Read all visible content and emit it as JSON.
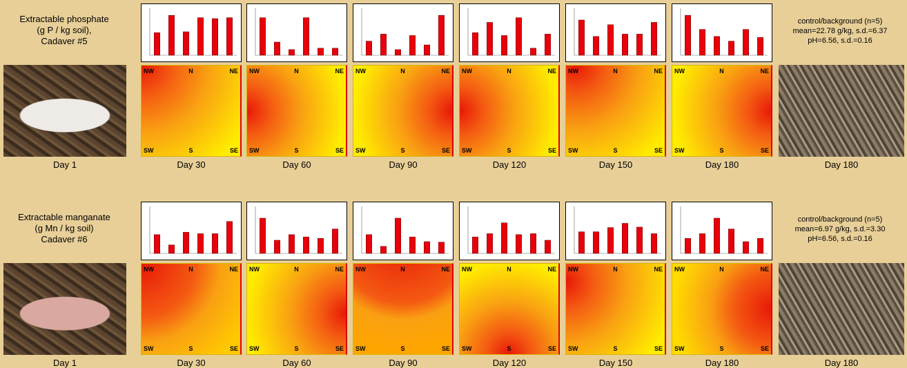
{
  "rows": [
    {
      "title_lines": [
        "Extractable phosphate",
        "(g P / kg soil),",
        "Cadaver #5"
      ],
      "control_lines": [
        "control/background (n=5)",
        "mean=22.78 g/kg, s.d.=6.37",
        "pH=6.56, s.d.=0.16"
      ],
      "photo_label": "Day 1",
      "control_photo_label": "Day 180",
      "panels": [
        {
          "day": "Day 30",
          "bars": [
            48,
            85,
            50,
            80,
            78,
            80
          ]
        },
        {
          "day": "Day 60",
          "bars": [
            80,
            28,
            12,
            80,
            15,
            15
          ]
        },
        {
          "day": "Day 90",
          "bars": [
            30,
            45,
            12,
            42,
            22,
            85
          ]
        },
        {
          "day": "Day 120",
          "bars": [
            48,
            70,
            42,
            80,
            15,
            45
          ]
        },
        {
          "day": "Day 150",
          "bars": [
            75,
            40,
            65,
            45,
            45,
            70
          ]
        },
        {
          "day": "Day 180",
          "bars": [
            85,
            55,
            40,
            30,
            55,
            38
          ]
        }
      ]
    },
    {
      "title_lines": [
        "Extractable manganate",
        "(g Mn / kg soil)",
        "Cadaver #6"
      ],
      "control_lines": [
        "control/background (n=5)",
        "mean=6.97 g/kg, s.d.=3.30",
        "pH=6.56, s.d.=0.16"
      ],
      "photo_label": "Day 1",
      "control_photo_label": "Day 180",
      "panels": [
        {
          "day": "Day 30",
          "bars": [
            40,
            18,
            45,
            42,
            42,
            68
          ]
        },
        {
          "day": "Day 60",
          "bars": [
            75,
            28,
            40,
            35,
            32,
            52
          ]
        },
        {
          "day": "Day 90",
          "bars": [
            40,
            15,
            75,
            35,
            25,
            24
          ]
        },
        {
          "day": "Day 120",
          "bars": [
            35,
            42,
            65,
            40,
            42,
            28
          ]
        },
        {
          "day": "Day 150",
          "bars": [
            46,
            46,
            55,
            64,
            56,
            42
          ]
        },
        {
          "day": "Day 180",
          "bars": [
            32,
            42,
            75,
            52,
            25,
            32
          ]
        }
      ]
    }
  ],
  "ylim": [
    0,
    100
  ],
  "compass": [
    "NW",
    "N",
    "NE",
    "SW",
    "S",
    "SE"
  ]
}
